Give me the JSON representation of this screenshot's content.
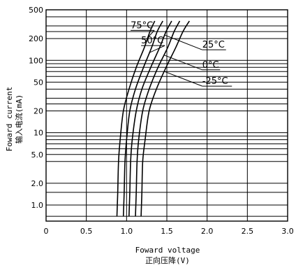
{
  "chart_data": {
    "type": "line",
    "xlabel": "Foward voltage",
    "xlabel_cn": "正向压降(V)",
    "ylabel": "Foward current",
    "ylabel_cn": "输入电流(mA)",
    "x_scale": "linear",
    "y_scale": "log",
    "xlim": [
      0,
      3.0
    ],
    "ylim": [
      1,
      500
    ],
    "x_ticks": [
      {
        "value": 0,
        "label": "0"
      },
      {
        "value": 0.5,
        "label": "0.5"
      },
      {
        "value": 1.0,
        "label": "1.0"
      },
      {
        "value": 1.5,
        "label": "1.5"
      },
      {
        "value": 2.0,
        "label": "2.0"
      },
      {
        "value": 2.5,
        "label": "2.5"
      },
      {
        "value": 3.0,
        "label": "3.0"
      }
    ],
    "y_ticks": [
      {
        "value": 500,
        "label": "500"
      },
      {
        "value": 200,
        "label": "200"
      },
      {
        "value": 100,
        "label": "100"
      },
      {
        "value": 50,
        "label": "50"
      },
      {
        "value": 20,
        "label": "20"
      },
      {
        "value": 10,
        "label": "10"
      },
      {
        "value": 5,
        "label": "5.0"
      },
      {
        "value": 2,
        "label": "2.0"
      },
      {
        "value": 1,
        "label": "1.0"
      }
    ],
    "y_gridlines": [
      0.7,
      1,
      1.5,
      2,
      4,
      5,
      6,
      7,
      8,
      9,
      10,
      20,
      25,
      30,
      40,
      50,
      60,
      70,
      80,
      90,
      100,
      200,
      250,
      300,
      400,
      500
    ],
    "grid": {
      "horizontal": true,
      "vertical": true
    },
    "series": [
      {
        "name": "75°C",
        "points": [
          [
            0.88,
            0.7
          ],
          [
            0.89,
            1.5
          ],
          [
            0.9,
            4
          ],
          [
            0.92,
            8
          ],
          [
            0.96,
            20
          ],
          [
            1.03,
            40
          ],
          [
            1.12,
            80
          ],
          [
            1.22,
            150
          ],
          [
            1.29,
            250
          ],
          [
            1.35,
            350
          ]
        ]
      },
      {
        "name": "50°C",
        "points": [
          [
            0.96,
            0.7
          ],
          [
            0.97,
            1.5
          ],
          [
            0.98,
            4
          ],
          [
            1.0,
            8
          ],
          [
            1.04,
            20
          ],
          [
            1.11,
            40
          ],
          [
            1.21,
            80
          ],
          [
            1.31,
            150
          ],
          [
            1.38,
            250
          ],
          [
            1.45,
            350
          ]
        ]
      },
      {
        "name": "25°C",
        "points": [
          [
            1.03,
            0.7
          ],
          [
            1.04,
            1.5
          ],
          [
            1.05,
            4
          ],
          [
            1.07,
            8
          ],
          [
            1.12,
            20
          ],
          [
            1.19,
            40
          ],
          [
            1.3,
            80
          ],
          [
            1.41,
            150
          ],
          [
            1.49,
            250
          ],
          [
            1.56,
            350
          ]
        ]
      },
      {
        "name": "0°C",
        "points": [
          [
            1.11,
            0.7
          ],
          [
            1.12,
            1.5
          ],
          [
            1.13,
            4
          ],
          [
            1.15,
            8
          ],
          [
            1.2,
            20
          ],
          [
            1.28,
            40
          ],
          [
            1.39,
            80
          ],
          [
            1.51,
            150
          ],
          [
            1.59,
            250
          ],
          [
            1.66,
            350
          ]
        ]
      },
      {
        "name": "-25°C",
        "points": [
          [
            1.18,
            0.7
          ],
          [
            1.19,
            1.5
          ],
          [
            1.2,
            4
          ],
          [
            1.23,
            8
          ],
          [
            1.28,
            20
          ],
          [
            1.37,
            40
          ],
          [
            1.49,
            80
          ],
          [
            1.61,
            150
          ],
          [
            1.7,
            250
          ],
          [
            1.78,
            350
          ]
        ]
      }
    ],
    "annotations": [
      {
        "text": "75°C",
        "series": "75°C",
        "anchor_x": 1.05,
        "anchor_y": 260
      },
      {
        "text": "50°C",
        "series": "50°C",
        "anchor_x": 1.18,
        "anchor_y": 160
      },
      {
        "text": "25°C",
        "series": "25°C",
        "anchor_x": 1.94,
        "anchor_y": 140
      },
      {
        "text": "0°C",
        "series": "0°C",
        "anchor_x": 1.94,
        "anchor_y": 74
      },
      {
        "text": "-25°C",
        "series": "-25°C",
        "anchor_x": 1.94,
        "anchor_y": 44
      }
    ]
  }
}
